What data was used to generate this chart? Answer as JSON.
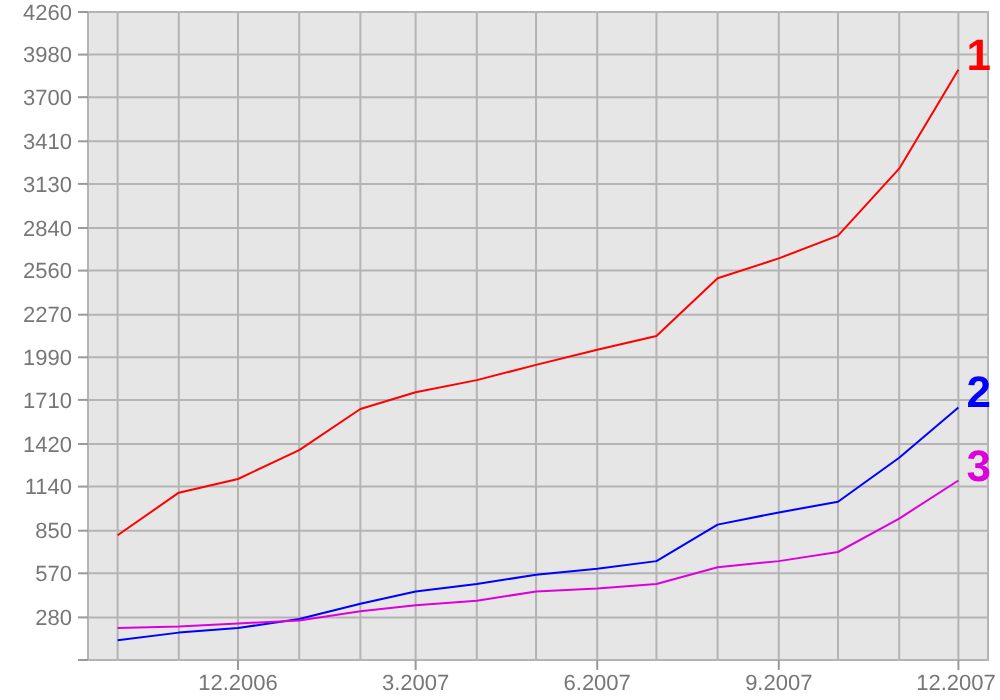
{
  "chart_data": {
    "type": "line",
    "x": [
      "2006-10",
      "2006-11",
      "2006-12",
      "2007-01",
      "2007-02",
      "2007-03",
      "2007-04",
      "2007-05",
      "2007-06",
      "2007-07",
      "2007-08",
      "2007-09",
      "2007-10",
      "2007-11",
      "2007-12"
    ],
    "series": [
      {
        "name": "1",
        "color": "#ff0000",
        "values": [
          820,
          1100,
          1190,
          1380,
          1650,
          1760,
          1840,
          1940,
          2040,
          2130,
          2510,
          2640,
          2790,
          3230,
          3880
        ]
      },
      {
        "name": "2",
        "color": "#0000ff",
        "values": [
          130,
          180,
          210,
          270,
          370,
          450,
          500,
          560,
          600,
          650,
          890,
          970,
          1040,
          1330,
          1660
        ]
      },
      {
        "name": "3",
        "color": "#dd00dd",
        "values": [
          210,
          220,
          240,
          260,
          320,
          360,
          390,
          450,
          470,
          500,
          610,
          650,
          710,
          930,
          1180
        ]
      }
    ],
    "xlim": [
      "2006-09-16",
      "2007-12-16"
    ],
    "xticks": [
      {
        "value": "2006-10",
        "label": null
      },
      {
        "value": "2006-11",
        "label": null
      },
      {
        "value": "2006-12",
        "label": "12.2006"
      },
      {
        "value": "2007-01",
        "label": null
      },
      {
        "value": "2007-02",
        "label": null
      },
      {
        "value": "2007-03",
        "label": "3.2007"
      },
      {
        "value": "2007-04",
        "label": null
      },
      {
        "value": "2007-05",
        "label": null
      },
      {
        "value": "2007-06",
        "label": "6.2007"
      },
      {
        "value": "2007-07",
        "label": null
      },
      {
        "value": "2007-08",
        "label": null
      },
      {
        "value": "2007-09",
        "label": "9.2007"
      },
      {
        "value": "2007-10",
        "label": null
      },
      {
        "value": "2007-11",
        "label": null
      },
      {
        "value": "2007-12",
        "label": "12.2007"
      }
    ],
    "ylim": [
      0,
      4260
    ],
    "yticks": [
      {
        "value": 0,
        "label": null
      },
      280,
      570,
      850,
      1140,
      1420,
      1710,
      1990,
      2270,
      2560,
      2840,
      3130,
      3410,
      3700,
      3980,
      4260
    ],
    "grid": true,
    "marker": "none",
    "line_style": "solid"
  }
}
